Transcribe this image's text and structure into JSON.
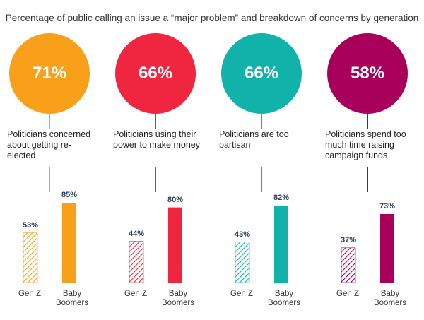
{
  "title": "Percentage of public calling an issue a “major problem” and breakdown of concerns by generation",
  "chart_data": [
    {
      "type": "bar",
      "headline_value": "71%",
      "issue": "Politicians concerned about getting re-elected",
      "color": "#F9A01B",
      "categories": [
        "Gen Z",
        "Baby Boomers"
      ],
      "values": [
        53,
        85
      ],
      "value_labels": [
        "53%",
        "85%"
      ],
      "ylim": [
        0,
        100
      ]
    },
    {
      "type": "bar",
      "headline_value": "66%",
      "issue": "Politicians using their power to make money",
      "color": "#F0253F",
      "categories": [
        "Gen Z",
        "Baby Boomers"
      ],
      "values": [
        44,
        80
      ],
      "value_labels": [
        "44%",
        "80%"
      ],
      "ylim": [
        0,
        100
      ]
    },
    {
      "type": "bar",
      "headline_value": "66%",
      "issue": "Politicians are too partisan",
      "color": "#10B2AA",
      "categories": [
        "Gen Z",
        "Baby Boomers"
      ],
      "values": [
        43,
        82
      ],
      "value_labels": [
        "43%",
        "82%"
      ],
      "ylim": [
        0,
        100
      ]
    },
    {
      "type": "bar",
      "headline_value": "58%",
      "issue": "Politicians spend too much time raising campaign funds",
      "color": "#A8005A",
      "categories": [
        "Gen Z",
        "Baby Boomers"
      ],
      "values": [
        37,
        73
      ],
      "value_labels": [
        "37%",
        "73%"
      ],
      "ylim": [
        0,
        100
      ]
    }
  ]
}
